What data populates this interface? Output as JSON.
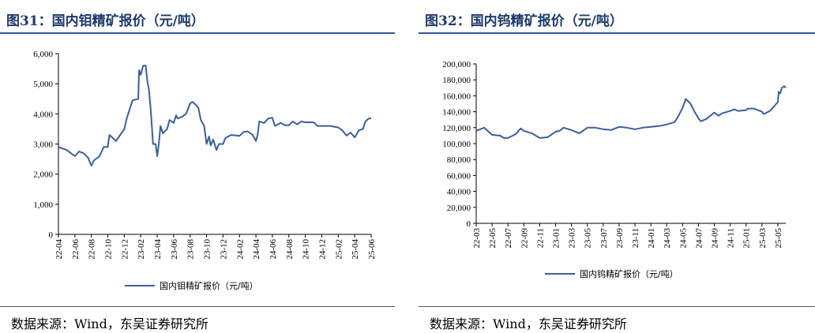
{
  "colors": {
    "line": "#3b5f9b",
    "title": "#1f3a6a",
    "rule": "#2f5597"
  },
  "chart_data": [
    {
      "type": "line",
      "title": "图31：国内钼精矿报价（元/吨）",
      "source": "数据来源：Wind，东吴证券研究所",
      "legend": "国内钼精矿报价（元/吨）",
      "legend_position": "bottom",
      "grid": false,
      "ylim": [
        0,
        6000
      ],
      "yticks": [
        0,
        1000,
        2000,
        3000,
        4000,
        5000,
        6000
      ],
      "ytick_labels": [
        "0",
        "1,000",
        "2,000",
        "3,000",
        "4,000",
        "5,000",
        "6,000"
      ],
      "xlim": [
        "2022-04-01",
        "2025-06-01"
      ],
      "xtick_labels": [
        "22-04",
        "22-06",
        "22-08",
        "22-10",
        "22-12",
        "23-02",
        "23-04",
        "23-06",
        "23-08",
        "23-10",
        "23-12",
        "24-02",
        "24-04",
        "24-06",
        "24-08",
        "24-10",
        "24-12",
        "25-02",
        "25-04",
        "25-06"
      ],
      "series": [
        {
          "name": "国内钼精矿报价（元/吨）",
          "points": [
            [
              "2022-04-01",
              2900
            ],
            [
              "2022-05-01",
              2800
            ],
            [
              "2022-06-01",
              2600
            ],
            [
              "2022-06-16",
              2750
            ],
            [
              "2022-07-01",
              2700
            ],
            [
              "2022-07-19",
              2550
            ],
            [
              "2022-08-01",
              2280
            ],
            [
              "2022-08-10",
              2450
            ],
            [
              "2022-09-01",
              2600
            ],
            [
              "2022-09-16",
              2900
            ],
            [
              "2022-10-01",
              2900
            ],
            [
              "2022-10-07",
              3300
            ],
            [
              "2022-11-01",
              3100
            ],
            [
              "2022-11-16",
              3300
            ],
            [
              "2022-12-01",
              3500
            ],
            [
              "2022-12-10",
              3850
            ],
            [
              "2023-01-01",
              4450
            ],
            [
              "2023-01-22",
              4500
            ],
            [
              "2023-01-25",
              5450
            ],
            [
              "2023-02-01",
              5300
            ],
            [
              "2023-02-10",
              5600
            ],
            [
              "2023-02-19",
              5600
            ],
            [
              "2023-02-25",
              5100
            ],
            [
              "2023-03-01",
              4800
            ],
            [
              "2023-03-07",
              4200
            ],
            [
              "2023-03-16",
              3000
            ],
            [
              "2023-03-25",
              3000
            ],
            [
              "2023-04-01",
              2600
            ],
            [
              "2023-04-07",
              3000
            ],
            [
              "2023-04-13",
              3600
            ],
            [
              "2023-04-22",
              3350
            ],
            [
              "2023-05-07",
              3500
            ],
            [
              "2023-05-16",
              3800
            ],
            [
              "2023-06-01",
              3700
            ],
            [
              "2023-06-10",
              3950
            ],
            [
              "2023-06-16",
              3850
            ],
            [
              "2023-07-01",
              3900
            ],
            [
              "2023-07-16",
              4000
            ],
            [
              "2023-07-25",
              4200
            ],
            [
              "2023-08-01",
              4350
            ],
            [
              "2023-08-10",
              4400
            ],
            [
              "2023-08-22",
              4300
            ],
            [
              "2023-09-01",
              4200
            ],
            [
              "2023-09-10",
              3800
            ],
            [
              "2023-09-22",
              3600
            ],
            [
              "2023-10-01",
              3000
            ],
            [
              "2023-10-10",
              3250
            ],
            [
              "2023-10-16",
              2950
            ],
            [
              "2023-10-25",
              3150
            ],
            [
              "2023-11-07",
              2800
            ],
            [
              "2023-11-16",
              3000
            ],
            [
              "2023-12-01",
              3000
            ],
            [
              "2023-12-10",
              3200
            ],
            [
              "2024-01-01",
              3300
            ],
            [
              "2024-02-01",
              3270
            ],
            [
              "2024-02-16",
              3400
            ],
            [
              "2024-03-01",
              3420
            ],
            [
              "2024-03-19",
              3300
            ],
            [
              "2024-04-01",
              3100
            ],
            [
              "2024-04-07",
              3300
            ],
            [
              "2024-04-13",
              3750
            ],
            [
              "2024-05-01",
              3700
            ],
            [
              "2024-05-16",
              3850
            ],
            [
              "2024-06-01",
              3870
            ],
            [
              "2024-06-10",
              3600
            ],
            [
              "2024-07-01",
              3700
            ],
            [
              "2024-07-16",
              3620
            ],
            [
              "2024-08-01",
              3620
            ],
            [
              "2024-08-16",
              3750
            ],
            [
              "2024-09-01",
              3650
            ],
            [
              "2024-09-16",
              3750
            ],
            [
              "2024-10-01",
              3720
            ],
            [
              "2024-11-01",
              3720
            ],
            [
              "2024-11-16",
              3600
            ],
            [
              "2024-12-01",
              3600
            ],
            [
              "2025-01-01",
              3600
            ],
            [
              "2025-02-01",
              3550
            ],
            [
              "2025-02-16",
              3450
            ],
            [
              "2025-03-01",
              3280
            ],
            [
              "2025-03-16",
              3380
            ],
            [
              "2025-04-01",
              3220
            ],
            [
              "2025-04-16",
              3450
            ],
            [
              "2025-05-01",
              3500
            ],
            [
              "2025-05-10",
              3750
            ],
            [
              "2025-05-22",
              3850
            ],
            [
              "2025-06-01",
              3850
            ]
          ]
        }
      ]
    },
    {
      "type": "line",
      "title": "图32：国内钨精矿报价（元/吨）",
      "source": "数据来源：Wind，东吴证券研究所",
      "legend": "国内钨精矿报价（元/吨）",
      "legend_position": "bottom",
      "grid": false,
      "ylim": [
        0,
        200000
      ],
      "yticks": [
        0,
        20000,
        40000,
        60000,
        80000,
        100000,
        120000,
        140000,
        160000,
        180000,
        200000
      ],
      "ytick_labels": [
        "0",
        "20,000",
        "40,000",
        "60,000",
        "80,000",
        "100,000",
        "120,000",
        "140,000",
        "160,000",
        "180,000",
        "200,000"
      ],
      "xlim": [
        "2022-03-01",
        "2025-06-01"
      ],
      "xtick_labels": [
        "22-03",
        "22-05",
        "22-07",
        "22-09",
        "22-11",
        "23-01",
        "23-03",
        "23-05",
        "23-07",
        "23-09",
        "23-11",
        "24-01",
        "24-03",
        "24-05",
        "24-07",
        "24-09",
        "24-11",
        "25-01",
        "25-03",
        "25-05"
      ],
      "series": [
        {
          "name": "国内钨精矿报价（元/吨）",
          "points": [
            [
              "2022-03-01",
              116000
            ],
            [
              "2022-04-01",
              120000
            ],
            [
              "2022-05-01",
              111000
            ],
            [
              "2022-06-01",
              110000
            ],
            [
              "2022-06-16",
              107000
            ],
            [
              "2022-07-01",
              107000
            ],
            [
              "2022-08-01",
              112000
            ],
            [
              "2022-08-19",
              119000
            ],
            [
              "2022-09-01",
              116000
            ],
            [
              "2022-10-01",
              113000
            ],
            [
              "2022-11-01",
              107000
            ],
            [
              "2022-12-01",
              108000
            ],
            [
              "2023-01-01",
              115000
            ],
            [
              "2023-01-16",
              116000
            ],
            [
              "2023-02-01",
              120000
            ],
            [
              "2023-03-01",
              117000
            ],
            [
              "2023-04-01",
              113000
            ],
            [
              "2023-05-01",
              120000
            ],
            [
              "2023-06-01",
              120000
            ],
            [
              "2023-07-01",
              118000
            ],
            [
              "2023-08-01",
              117000
            ],
            [
              "2023-09-01",
              121000
            ],
            [
              "2023-10-01",
              120000
            ],
            [
              "2023-11-01",
              118000
            ],
            [
              "2023-12-01",
              120000
            ],
            [
              "2024-01-01",
              121000
            ],
            [
              "2024-02-01",
              122000
            ],
            [
              "2024-03-01",
              124000
            ],
            [
              "2024-04-01",
              127000
            ],
            [
              "2024-04-16",
              135000
            ],
            [
              "2024-05-01",
              145000
            ],
            [
              "2024-05-13",
              156000
            ],
            [
              "2024-06-01",
              150000
            ],
            [
              "2024-06-16",
              140000
            ],
            [
              "2024-07-01",
              132000
            ],
            [
              "2024-07-10",
              128000
            ],
            [
              "2024-08-01",
              131000
            ],
            [
              "2024-09-01",
              139000
            ],
            [
              "2024-09-16",
              135000
            ],
            [
              "2024-10-01",
              138000
            ],
            [
              "2024-11-01",
              141000
            ],
            [
              "2024-11-16",
              143000
            ],
            [
              "2024-12-01",
              141000
            ],
            [
              "2025-01-01",
              142000
            ],
            [
              "2025-01-07",
              144000
            ],
            [
              "2025-02-01",
              144000
            ],
            [
              "2025-03-01",
              140000
            ],
            [
              "2025-03-07",
              137000
            ],
            [
              "2025-04-01",
              141000
            ],
            [
              "2025-05-01",
              152000
            ],
            [
              "2025-05-04",
              165000
            ],
            [
              "2025-05-10",
              163000
            ],
            [
              "2025-05-16",
              170000
            ],
            [
              "2025-05-25",
              172000
            ],
            [
              "2025-06-01",
              170000
            ]
          ]
        }
      ]
    }
  ]
}
